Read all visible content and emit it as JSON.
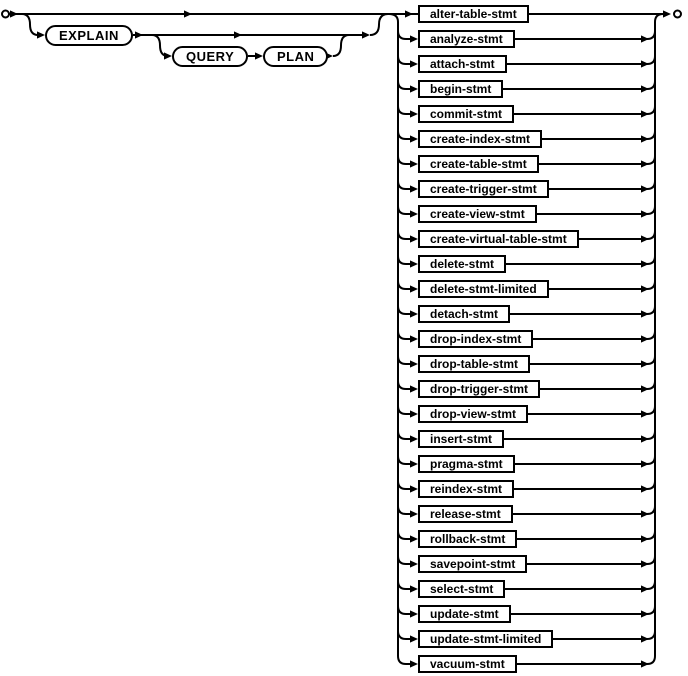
{
  "diagram": {
    "keywords": [
      {
        "label": "EXPLAIN"
      },
      {
        "label": "QUERY"
      },
      {
        "label": "PLAN"
      }
    ],
    "branches": [
      {
        "label": "alter-table-stmt"
      },
      {
        "label": "analyze-stmt"
      },
      {
        "label": "attach-stmt"
      },
      {
        "label": "begin-stmt"
      },
      {
        "label": "commit-stmt"
      },
      {
        "label": "create-index-stmt"
      },
      {
        "label": "create-table-stmt"
      },
      {
        "label": "create-trigger-stmt"
      },
      {
        "label": "create-view-stmt"
      },
      {
        "label": "create-virtual-table-stmt"
      },
      {
        "label": "delete-stmt"
      },
      {
        "label": "delete-stmt-limited"
      },
      {
        "label": "detach-stmt"
      },
      {
        "label": "drop-index-stmt"
      },
      {
        "label": "drop-table-stmt"
      },
      {
        "label": "drop-trigger-stmt"
      },
      {
        "label": "drop-view-stmt"
      },
      {
        "label": "insert-stmt"
      },
      {
        "label": "pragma-stmt"
      },
      {
        "label": "reindex-stmt"
      },
      {
        "label": "release-stmt"
      },
      {
        "label": "rollback-stmt"
      },
      {
        "label": "savepoint-stmt"
      },
      {
        "label": "select-stmt"
      },
      {
        "label": "update-stmt"
      },
      {
        "label": "update-stmt-limited"
      },
      {
        "label": "vacuum-stmt"
      }
    ],
    "colors": {
      "line": "#000000",
      "shape_border": "#000000",
      "shape_fill": "#ffffff",
      "text": "#000000",
      "background": "#ffffff"
    }
  }
}
